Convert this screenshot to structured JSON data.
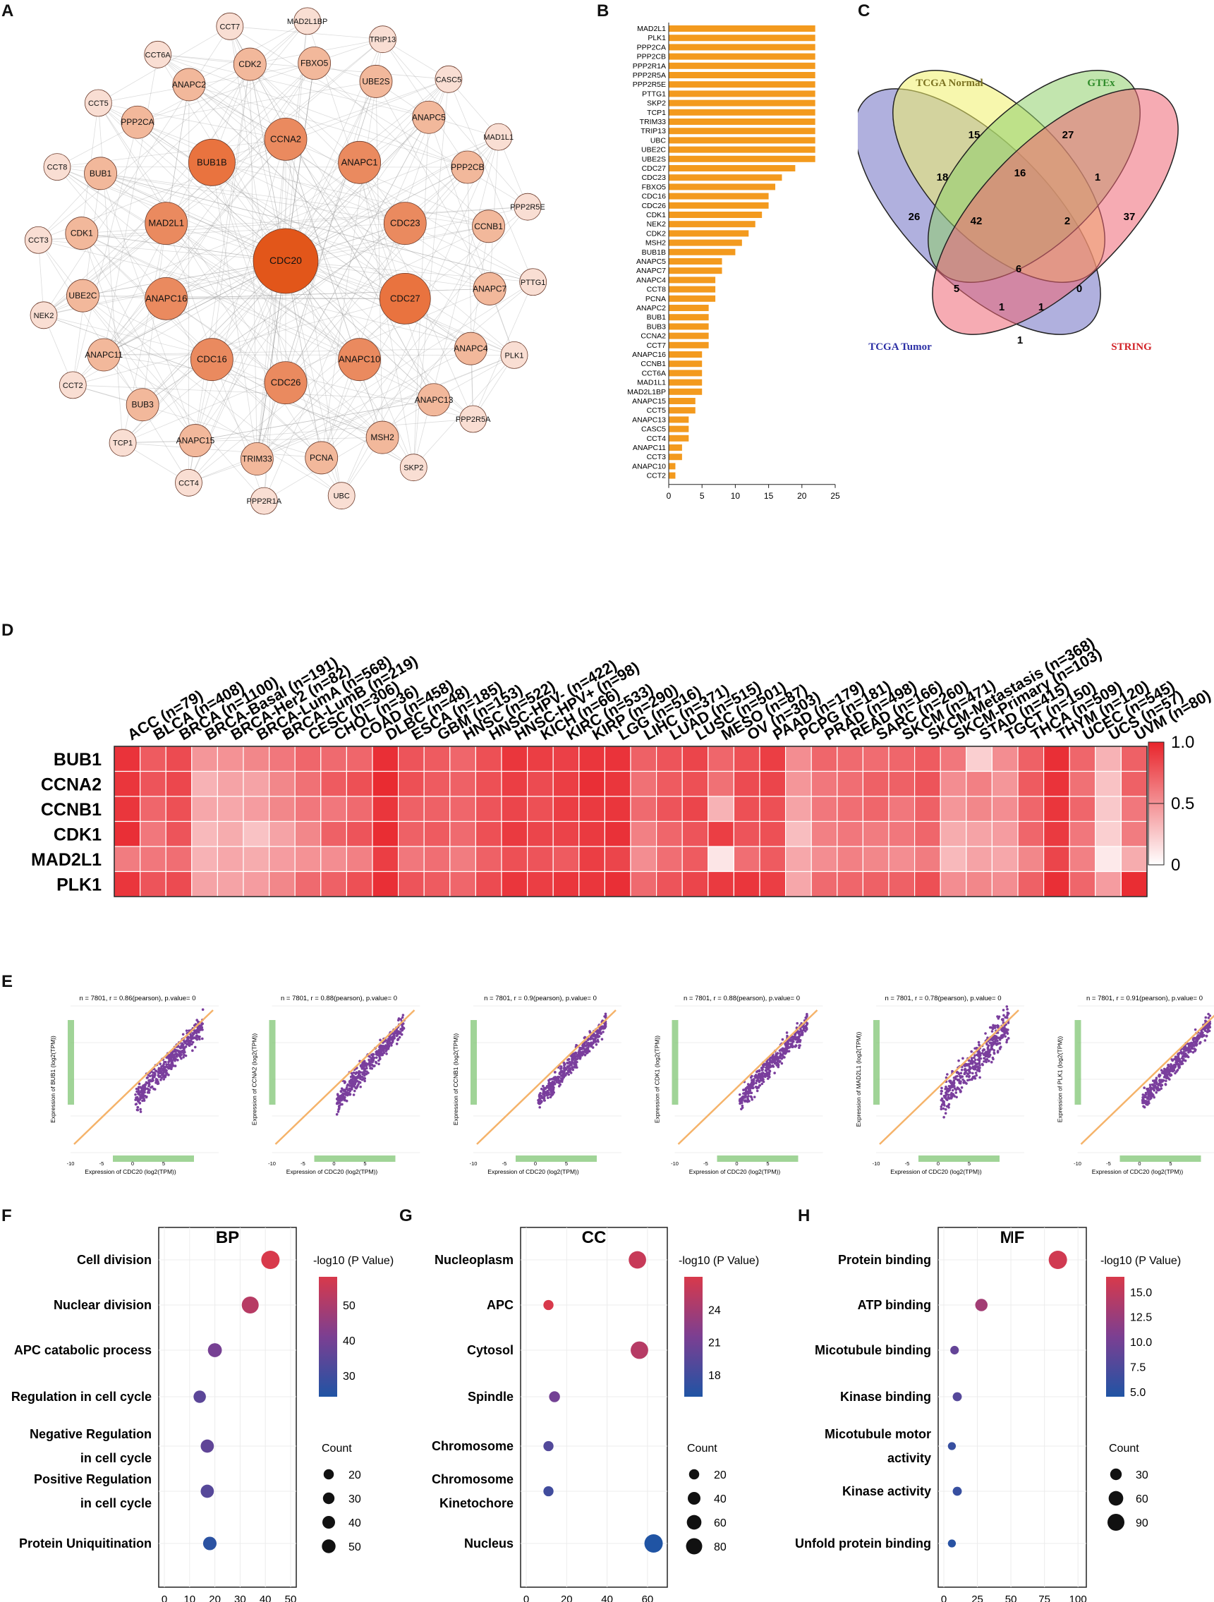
{
  "panel_labels": {
    "A": "A",
    "B": "B",
    "C": "C",
    "D": "D",
    "E": "E",
    "F": "F",
    "G": "G",
    "H": "H"
  },
  "colors": {
    "orange": "#f39a1e",
    "node_dark": "#e2561a",
    "node_mid": "#ea8a5f",
    "node_light": "#f2b89b",
    "node_pale": "#f9ded3",
    "heat_high": "#e8242b",
    "violet": "#7a3e9d",
    "green": "#78c26b",
    "fit_line": "#f5b36a"
  },
  "network": {
    "center": "CDC20",
    "inner_ring": [
      "CCNA2",
      "ANAPC1",
      "CDC23",
      "CDC27",
      "ANAPC10",
      "CDC26",
      "CDC16",
      "ANAPC16",
      "MAD2L1",
      "BUB1B"
    ],
    "middle_ring": [
      "CDK2",
      "FBXO5",
      "UBE2S",
      "ANAPC5",
      "PPP2CB",
      "CCNB1",
      "ANAPC7",
      "ANAPC4",
      "ANAPC13",
      "MSH2",
      "PCNA",
      "TRIM33",
      "ANAPC15",
      "BUB3",
      "ANAPC11",
      "UBE2C",
      "CDK1",
      "BUB1",
      "PPP2CA",
      "ANAPC2"
    ],
    "outer_ring": [
      "MAD2L1BP",
      "TRIP13",
      "CASC5",
      "MAD1L1",
      "PPP2R5E",
      "PTTG1",
      "PLK1",
      "PPP2R5A",
      "SKP2",
      "UBC",
      "PPP2R1A",
      "CCT4",
      "TCP1",
      "CCT2",
      "NEK2",
      "CCT3",
      "CCT8",
      "CCT5",
      "CCT6A",
      "CCT7"
    ]
  },
  "venn": {
    "sets": [
      "TCGA Normal",
      "GTEx",
      "TCGA Tumor",
      "STRING"
    ],
    "counts": {
      "n_only": "15",
      "g_only": "27",
      "t_only": "26",
      "s_only": "37",
      "tn": "18",
      "ng": "16",
      "gs": "1",
      "tng": "42",
      "ngs": "2",
      "tngs": "6",
      "tg": "5",
      "tgs": "1",
      "tns": "1",
      "ts": "1",
      "ns": "0"
    }
  },
  "chart_data": [
    {
      "type": "bar",
      "panel": "B",
      "orientation": "horizontal",
      "categories": [
        "MAD2L1",
        "PLK1",
        "PPP2CA",
        "PPP2CB",
        "PPP2R1A",
        "PPP2R5A",
        "PPP2R5E",
        "PTTG1",
        "SKP2",
        "TCP1",
        "TRIM33",
        "TRIP13",
        "UBC",
        "UBE2C",
        "UBE2S",
        "CDC27",
        "CDC23",
        "FBXO5",
        "CDC16",
        "CDC26",
        "CDK1",
        "NEK2",
        "CDK2",
        "MSH2",
        "BUB1B",
        "ANAPC5",
        "ANAPC7",
        "ANAPC4",
        "CCT8",
        "PCNA",
        "ANAPC2",
        "BUB1",
        "BUB3",
        "CCNA2",
        "CCT7",
        "ANAPC16",
        "CCNB1",
        "CCT6A",
        "MAD1L1",
        "MAD2L1BP",
        "ANAPC15",
        "CCT5",
        "ANAPC13",
        "CASC5",
        "CCT4",
        "ANAPC11",
        "CCT3",
        "ANAPC10",
        "CCT2"
      ],
      "values": [
        22,
        22,
        22,
        22,
        22,
        22,
        22,
        22,
        22,
        22,
        22,
        22,
        22,
        22,
        22,
        19,
        17,
        16,
        15,
        15,
        14,
        13,
        12,
        11,
        10,
        8,
        8,
        7,
        7,
        7,
        6,
        6,
        6,
        6,
        6,
        5,
        5,
        5,
        5,
        5,
        4,
        4,
        3,
        3,
        3,
        2,
        2,
        1,
        1
      ],
      "xlim": [
        0,
        25
      ],
      "xticks": [
        "0",
        "5",
        "10",
        "15",
        "20",
        "25"
      ]
    },
    {
      "type": "heatmap",
      "panel": "D",
      "columns": [
        "ACC (n=79)",
        "BLCA (n=408)",
        "BRCA (n=1100)",
        "BRCA-Basal (n=191)",
        "BRCA-Her2 (n=82)",
        "BRCA-LumA (n=568)",
        "BRCA-LumB (n=219)",
        "CESC (n=306)",
        "CHOL (n=36)",
        "COAD (n=458)",
        "DLBC (n=48)",
        "ESCA (n=185)",
        "GBM (n=153)",
        "HNSC (n=522)",
        "HNSC-HPV- (n=422)",
        "HNSC-HPV+ (n=98)",
        "KICH (n=66)",
        "KIRC (n=533)",
        "KIRP (n=290)",
        "LGG (n=516)",
        "LIHC (n=371)",
        "LUAD (n=515)",
        "LUSC (n=501)",
        "MESO (n=87)",
        "OV (n=303)",
        "PAAD (n=179)",
        "PCPG (n=181)",
        "PRAD (n=498)",
        "READ (n=166)",
        "SARC (n=260)",
        "SKCM (n=471)",
        "SKCM-Metastasis (n=368)",
        "SKCM-Primary (n=103)",
        "STAD (n=415)",
        "TGCT (n=150)",
        "THCA (n=509)",
        "THYM (n=120)",
        "UCEC (n=545)",
        "UCS (n=57)",
        "UVM (n=80)"
      ],
      "rows": [
        "BUB1",
        "CCNA2",
        "CCNB1",
        "CDK1",
        "MAD2L1",
        "PLK1"
      ],
      "values": [
        [
          0.93,
          0.75,
          0.82,
          0.48,
          0.5,
          0.55,
          0.62,
          0.7,
          0.68,
          0.7,
          0.95,
          0.78,
          0.75,
          0.7,
          0.8,
          0.92,
          0.88,
          0.87,
          0.92,
          0.93,
          0.72,
          0.78,
          0.85,
          0.7,
          0.8,
          0.88,
          0.52,
          0.7,
          0.68,
          0.67,
          0.7,
          0.75,
          0.62,
          0.22,
          0.52,
          0.72,
          0.95,
          0.7,
          0.35,
          0.72
        ],
        [
          0.92,
          0.78,
          0.84,
          0.35,
          0.42,
          0.42,
          0.55,
          0.65,
          0.75,
          0.8,
          0.97,
          0.8,
          0.75,
          0.72,
          0.8,
          0.88,
          0.82,
          0.88,
          0.95,
          0.92,
          0.65,
          0.75,
          0.8,
          0.65,
          0.82,
          0.85,
          0.48,
          0.62,
          0.66,
          0.72,
          0.72,
          0.78,
          0.52,
          0.58,
          0.48,
          0.75,
          0.93,
          0.65,
          0.28,
          0.72
        ],
        [
          0.92,
          0.7,
          0.8,
          0.4,
          0.4,
          0.45,
          0.55,
          0.62,
          0.62,
          0.68,
          0.92,
          0.72,
          0.72,
          0.7,
          0.78,
          0.85,
          0.8,
          0.88,
          0.9,
          0.92,
          0.68,
          0.78,
          0.85,
          0.35,
          0.8,
          0.8,
          0.42,
          0.62,
          0.66,
          0.7,
          0.62,
          0.72,
          0.48,
          0.55,
          0.52,
          0.7,
          0.92,
          0.7,
          0.25,
          0.62
        ],
        [
          0.95,
          0.62,
          0.78,
          0.32,
          0.38,
          0.28,
          0.42,
          0.55,
          0.72,
          0.78,
          0.96,
          0.72,
          0.75,
          0.68,
          0.8,
          0.9,
          0.85,
          0.86,
          0.9,
          0.94,
          0.58,
          0.7,
          0.78,
          0.88,
          0.78,
          0.8,
          0.3,
          0.58,
          0.62,
          0.6,
          0.62,
          0.7,
          0.38,
          0.42,
          0.45,
          0.7,
          0.9,
          0.62,
          0.22,
          0.6
        ],
        [
          0.6,
          0.62,
          0.66,
          0.35,
          0.4,
          0.38,
          0.45,
          0.5,
          0.52,
          0.58,
          0.88,
          0.62,
          0.66,
          0.6,
          0.72,
          0.8,
          0.78,
          0.75,
          0.88,
          0.85,
          0.52,
          0.66,
          0.75,
          0.12,
          0.66,
          0.75,
          0.4,
          0.52,
          0.58,
          0.55,
          0.52,
          0.6,
          0.32,
          0.42,
          0.4,
          0.55,
          0.85,
          0.58,
          0.1,
          0.38
        ],
        [
          0.92,
          0.78,
          0.82,
          0.42,
          0.42,
          0.45,
          0.55,
          0.68,
          0.72,
          0.8,
          0.95,
          0.78,
          0.75,
          0.7,
          0.82,
          0.92,
          0.88,
          0.92,
          0.92,
          0.95,
          0.68,
          0.78,
          0.85,
          0.9,
          0.92,
          0.88,
          0.4,
          0.68,
          0.7,
          0.72,
          0.72,
          0.8,
          0.52,
          0.55,
          0.52,
          0.72,
          0.95,
          0.7,
          0.45,
          0.96
        ]
      ],
      "colorbar": {
        "ticks": [
          "1.0",
          "0.5",
          "0"
        ],
        "range": [
          0,
          1
        ]
      }
    },
    {
      "type": "scatter",
      "panel": "E",
      "xlabel": "Expression of CDC20 (log2(TPM))",
      "xticks": [
        "-10",
        "-5",
        "0",
        "5"
      ],
      "plots": [
        {
          "gene": "BUB1",
          "title": "n = 7801, r = 0.86(pearson), p.value= 0",
          "ylabel": "Expression of BUB1 (log2(TPM))",
          "r": 0.86
        },
        {
          "gene": "CCNA2",
          "title": "n = 7801, r = 0.88(pearson), p.value= 0",
          "ylabel": "Expression of CCNA2 (log2(TPM))",
          "r": 0.88
        },
        {
          "gene": "CCNB1",
          "title": "n = 7801, r = 0.9(pearson), p.value= 0",
          "ylabel": "Expression of CCNB1 (log2(TPM))",
          "r": 0.9
        },
        {
          "gene": "CDK1",
          "title": "n = 7801, r = 0.88(pearson), p.value= 0",
          "ylabel": "Expression of CDK1 (log2(TPM))",
          "r": 0.88
        },
        {
          "gene": "MAD2L1",
          "title": "n = 7801, r = 0.78(pearson), p.value= 0",
          "ylabel": "Expression of MAD2L1 (log2(TPM))",
          "r": 0.78
        },
        {
          "gene": "PLK1",
          "title": "n = 7801, r = 0.91(pearson), p.value= 0",
          "ylabel": "Expression of PLK1 (log2(TPM))",
          "r": 0.91
        }
      ]
    },
    {
      "type": "scatter",
      "panel": "F",
      "title": "BP",
      "categories": [
        "Cell division",
        "Nuclear division",
        "APC catabolic process",
        "Regulation in cell cycle",
        "Negative Regulation in cell cycle",
        "Positive Regulation in cell cycle",
        "Protein Uniquitination"
      ],
      "labels": [
        [
          "Cell division"
        ],
        [
          "Nuclear division"
        ],
        [
          "APC catabolic process"
        ],
        [
          "Regulation in cell cycle"
        ],
        [
          "Negative Regulation",
          "in cell cycle"
        ],
        [
          "Positive Regulation",
          "in cell cycle"
        ],
        [
          "Protein Uniquitination"
        ]
      ],
      "x": [
        42,
        34,
        20,
        14,
        17,
        17,
        18
      ],
      "counts": [
        42,
        34,
        20,
        14,
        17,
        17,
        18
      ],
      "log10p": [
        58,
        52,
        40,
        35,
        36,
        34,
        26
      ],
      "xlim": [
        0,
        50
      ],
      "xticks": [
        "0",
        "10",
        "20",
        "30",
        "40",
        "50"
      ],
      "colorbar": {
        "title": "-log10 (P Value)",
        "ticks": [
          "50",
          "40",
          "30"
        ],
        "range": [
          24,
          58
        ]
      },
      "size_legend": {
        "title": "Count",
        "values": [
          "20",
          "30",
          "40",
          "50"
        ]
      }
    },
    {
      "type": "scatter",
      "panel": "G",
      "title": "CC",
      "categories": [
        "Nucleoplasm",
        "APC",
        "Cytosol",
        "Spindle",
        "Chromosome",
        "Chromosome Kinetochore",
        "Nucleus"
      ],
      "labels": [
        [
          "Nucleoplasm"
        ],
        [
          "APC"
        ],
        [
          "Cytosol"
        ],
        [
          "Spindle"
        ],
        [
          "Chromosome"
        ],
        [
          "Chromosome",
          "Kinetochore"
        ],
        [
          "Nucleus"
        ]
      ],
      "x": [
        55,
        11,
        56,
        14,
        11,
        11,
        63
      ],
      "counts": [
        55,
        11,
        56,
        14,
        11,
        11,
        63
      ],
      "log10p": [
        26,
        27,
        25,
        21,
        19,
        18,
        16
      ],
      "xlim": [
        0,
        67
      ],
      "xticks": [
        "0",
        "20",
        "40",
        "60"
      ],
      "colorbar": {
        "title": "-log10 (P Value)",
        "ticks": [
          "24",
          "21",
          "18"
        ],
        "range": [
          16,
          27
        ]
      },
      "size_legend": {
        "title": "Count",
        "values": [
          "20",
          "40",
          "60",
          "80"
        ]
      }
    },
    {
      "type": "scatter",
      "panel": "H",
      "title": "MF",
      "categories": [
        "Protein binding",
        "ATP binding",
        "Micotubule binding",
        "Kinase binding",
        "Micotubule motor activity",
        "Kinase activity",
        "Unfold protein binding"
      ],
      "labels": [
        [
          "Protein binding"
        ],
        [
          "ATP binding"
        ],
        [
          "Micotubule binding"
        ],
        [
          "Kinase binding"
        ],
        [
          "Micotubule motor",
          "activity"
        ],
        [
          "Kinase activity"
        ],
        [
          "Unfold protein binding"
        ]
      ],
      "x": [
        85,
        28,
        8,
        10,
        6,
        10,
        6
      ],
      "counts": [
        85,
        28,
        8,
        10,
        6,
        10,
        6
      ],
      "log10p": [
        16,
        13,
        9,
        8,
        6,
        6,
        5
      ],
      "xlim": [
        0,
        102
      ],
      "xticks": [
        "0",
        "25",
        "50",
        "75",
        "100"
      ],
      "colorbar": {
        "title": "-log10 (P Value)",
        "ticks": [
          "15.0",
          "12.5",
          "10.0",
          "7.5",
          "5.0"
        ],
        "range": [
          4.5,
          16.5
        ]
      },
      "size_legend": {
        "title": "Count",
        "values": [
          "30",
          "60",
          "90"
        ]
      }
    }
  ]
}
